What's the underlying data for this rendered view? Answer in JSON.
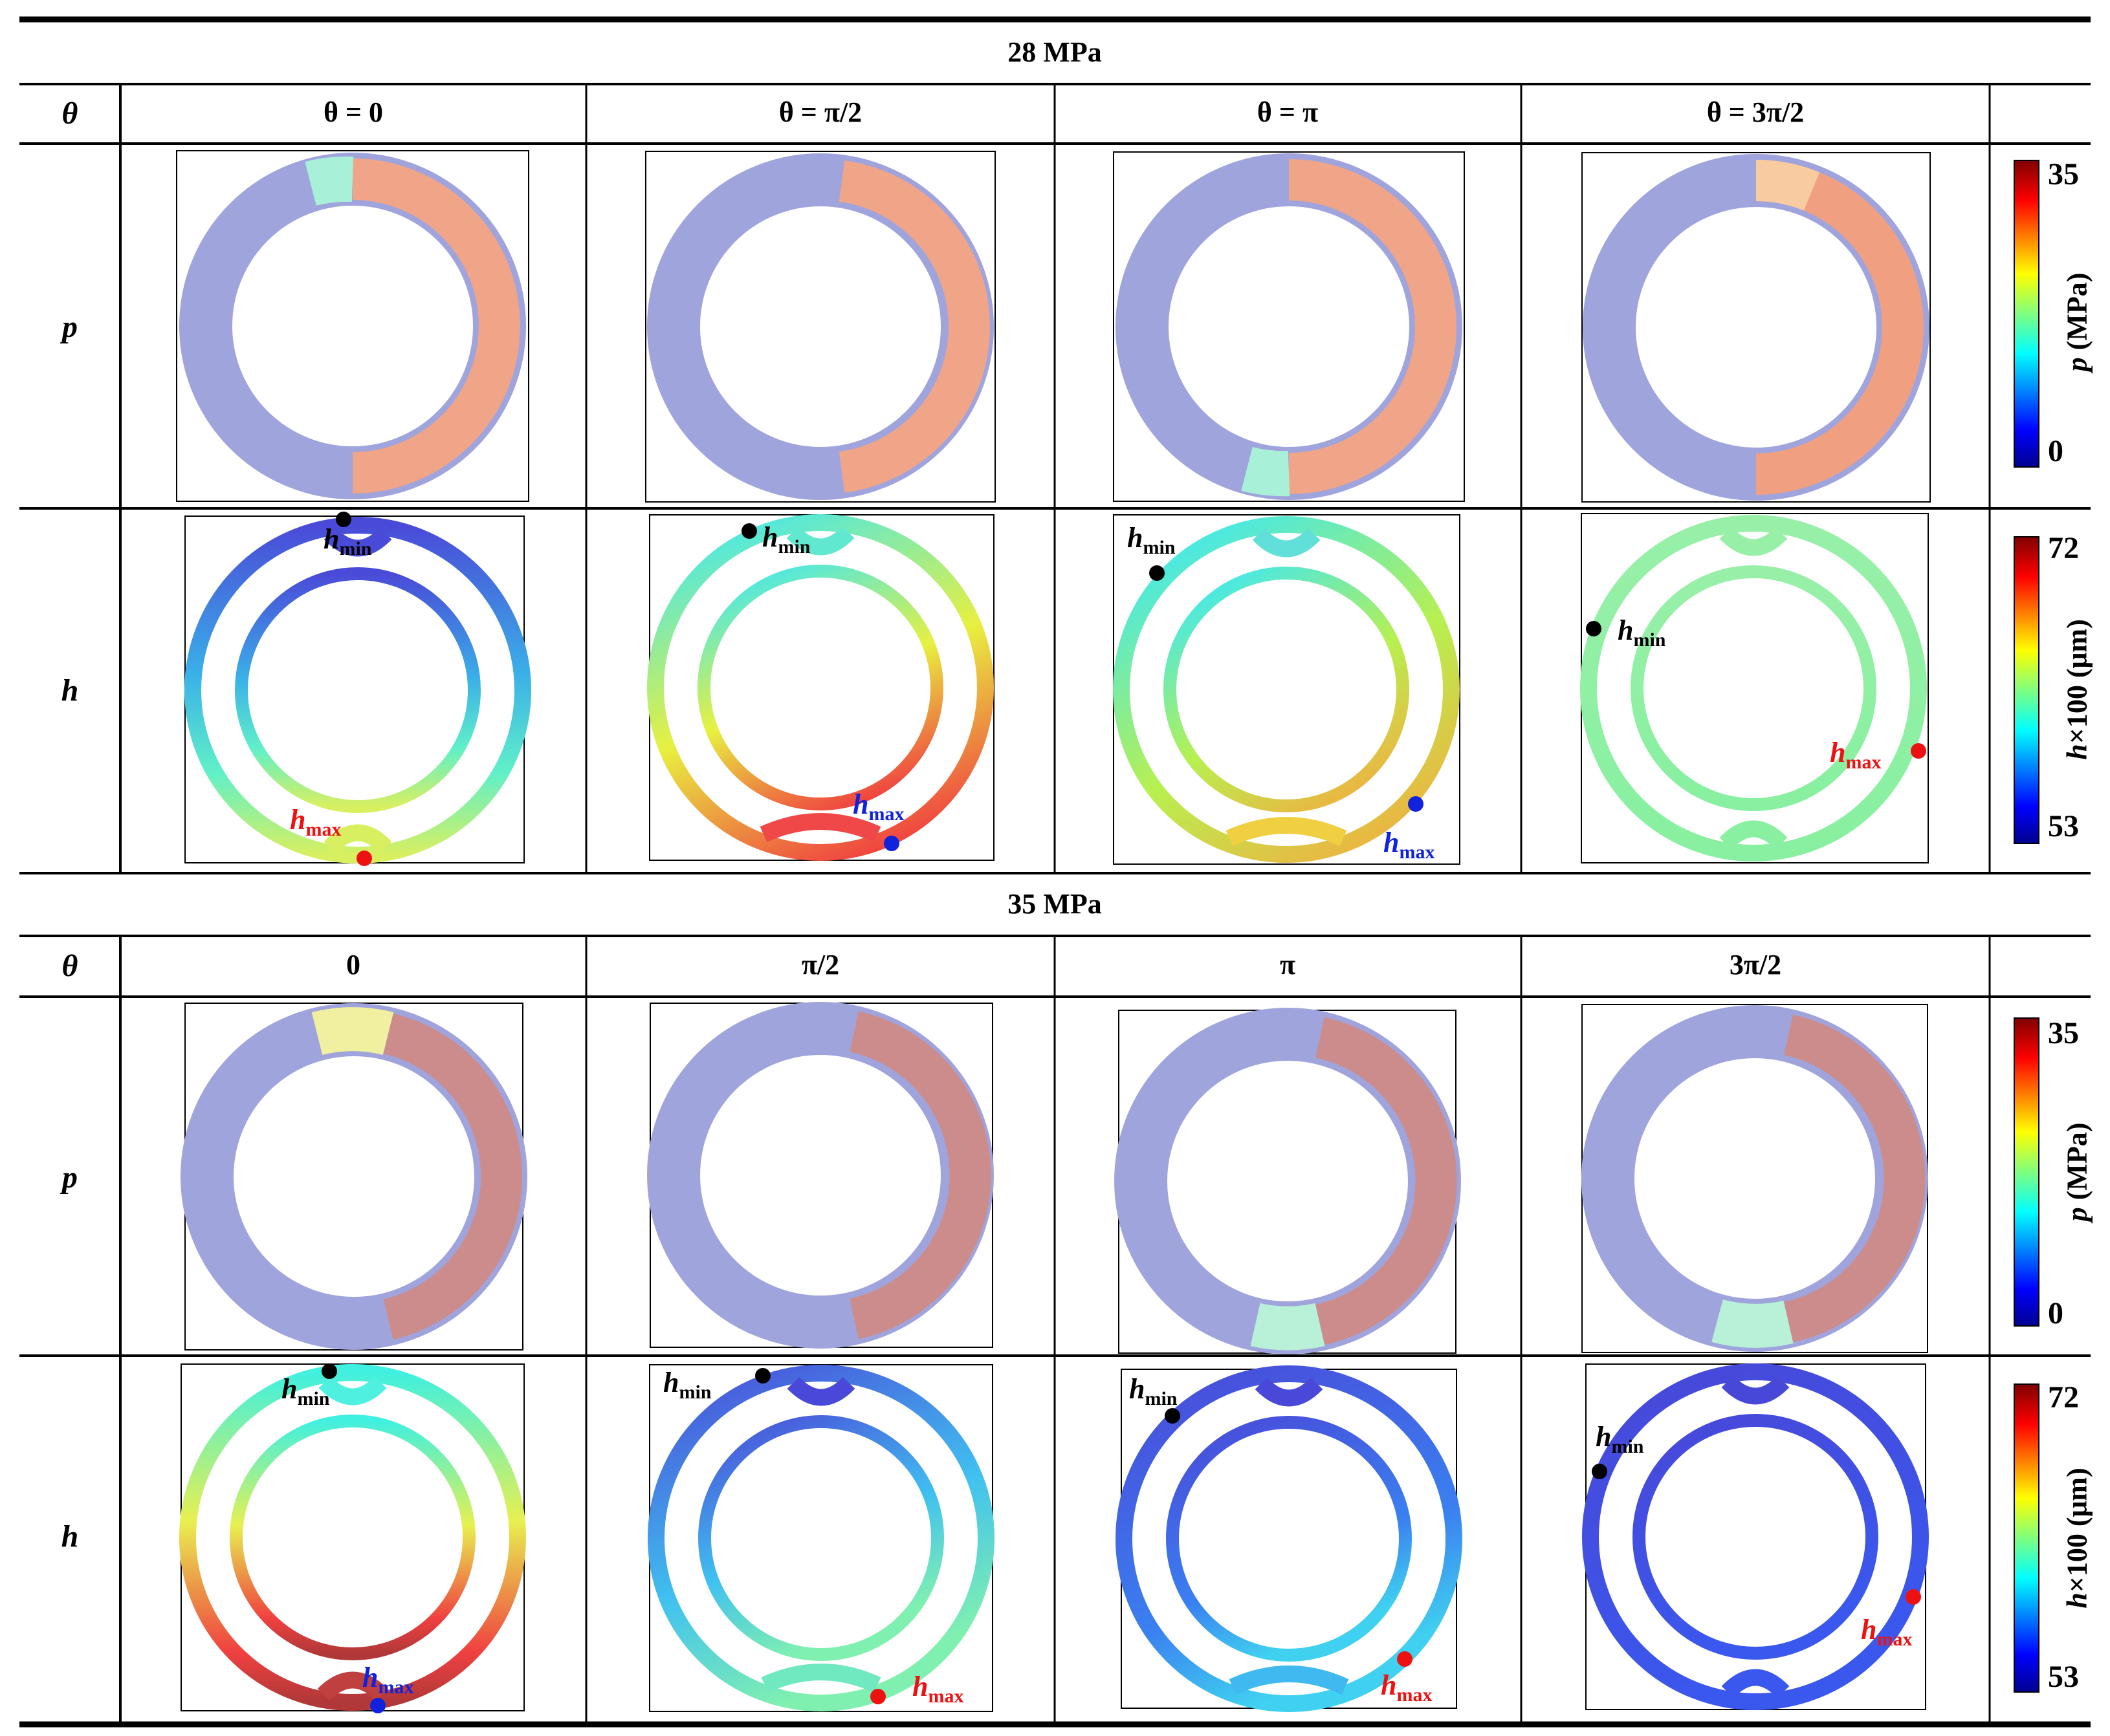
{
  "sections": [
    {
      "title": "28 MPa",
      "theta_label": "θ",
      "headers": [
        "θ = 0",
        "θ = π/2",
        "θ = π",
        "θ = 3π/2"
      ],
      "rows": [
        {
          "label": "p",
          "type": "pressure"
        },
        {
          "label": "h",
          "type": "thickness"
        }
      ],
      "pressure_colorbar": {
        "title_var": "p",
        "title_unit": " (MPa)",
        "max": "35",
        "min": "0"
      },
      "thickness_colorbar": {
        "title_var": "h",
        "title_unit": "×100 (μm)",
        "max": "72",
        "min": "53"
      }
    },
    {
      "title": "35 MPa",
      "theta_label": "θ",
      "headers": [
        "0",
        "π/2",
        "π",
        "3π/2"
      ],
      "rows": [
        {
          "label": "p",
          "type": "pressure"
        },
        {
          "label": "h",
          "type": "thickness"
        }
      ],
      "pressure_colorbar": {
        "title_var": "p",
        "title_unit": " (MPa)",
        "max": "35",
        "min": "0"
      },
      "thickness_colorbar": {
        "title_var": "h",
        "title_unit": "×100 (μm)",
        "max": "72",
        "min": "53"
      }
    }
  ],
  "annotations": {
    "h": "h",
    "min": "min",
    "max": "max"
  },
  "colors": {
    "pressure_low": "#a0a4dc",
    "pressure_high": "#f0a488",
    "pressure_high_35": "#cc8c8c",
    "hmin_marker": "#000000",
    "hmax_red": "#ee1111",
    "hmax_blue": "#1122dd"
  }
}
